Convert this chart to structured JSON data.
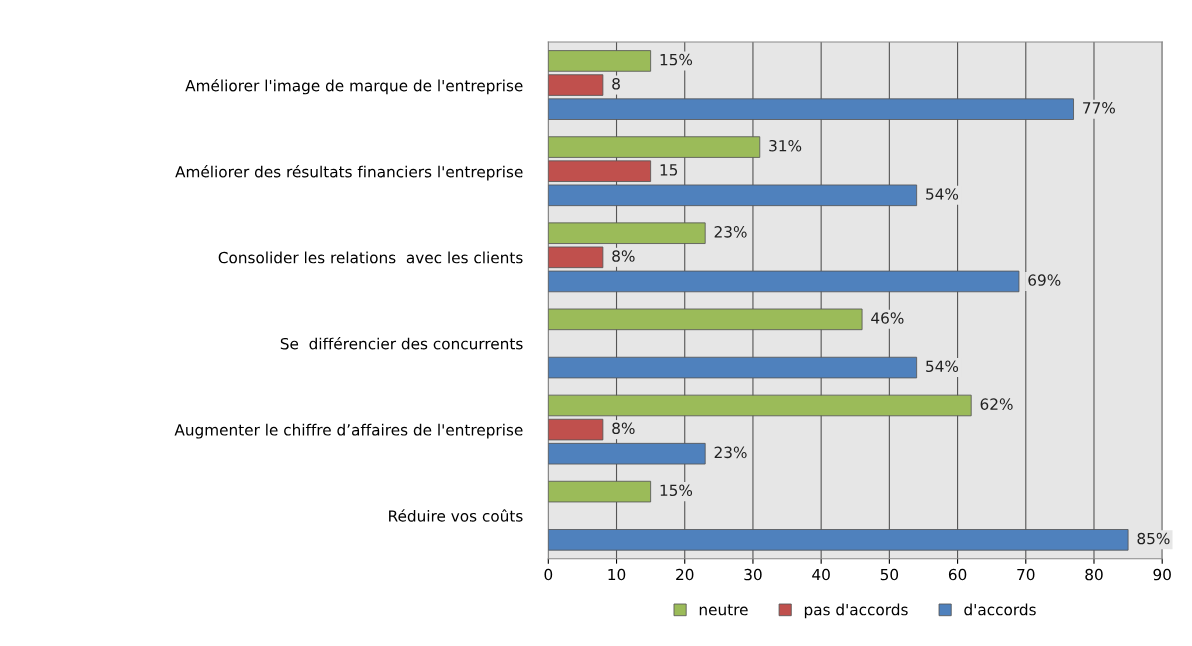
{
  "chart_data": {
    "type": "bar",
    "orientation": "horizontal",
    "categories": [
      "Améliorer l'image de marque de l'entreprise",
      "Améliorer des résultats financiers l'entreprise",
      "Consolider les relations  avec les clients",
      "Se  différencier des concurrents",
      "Augmenter le chiffre d’affaires de l'entreprise",
      "Réduire vos coûts"
    ],
    "series": [
      {
        "name": "neutre",
        "color": "#9bbb59",
        "values": [
          15,
          31,
          23,
          46,
          62,
          15
        ],
        "value_labels": [
          "15%",
          "31%",
          "23%",
          "46%",
          "62%",
          "15%"
        ]
      },
      {
        "name": "pas d'accords",
        "color": "#c0504d",
        "values": [
          8,
          15,
          8,
          null,
          8,
          null
        ],
        "value_labels": [
          "8",
          "15",
          "8%",
          null,
          "8%",
          null
        ]
      },
      {
        "name": "d'accords",
        "color": "#4f81bd",
        "values": [
          77,
          54,
          69,
          54,
          23,
          85
        ],
        "value_labels": [
          "77%",
          "54%",
          "69%",
          "54%",
          "23%",
          "85%"
        ]
      }
    ],
    "xlim": [
      0,
      90
    ],
    "xticks": [
      0,
      10,
      20,
      30,
      40,
      50,
      60,
      70,
      80,
      90
    ],
    "grid": "x",
    "legend": "bottom"
  }
}
